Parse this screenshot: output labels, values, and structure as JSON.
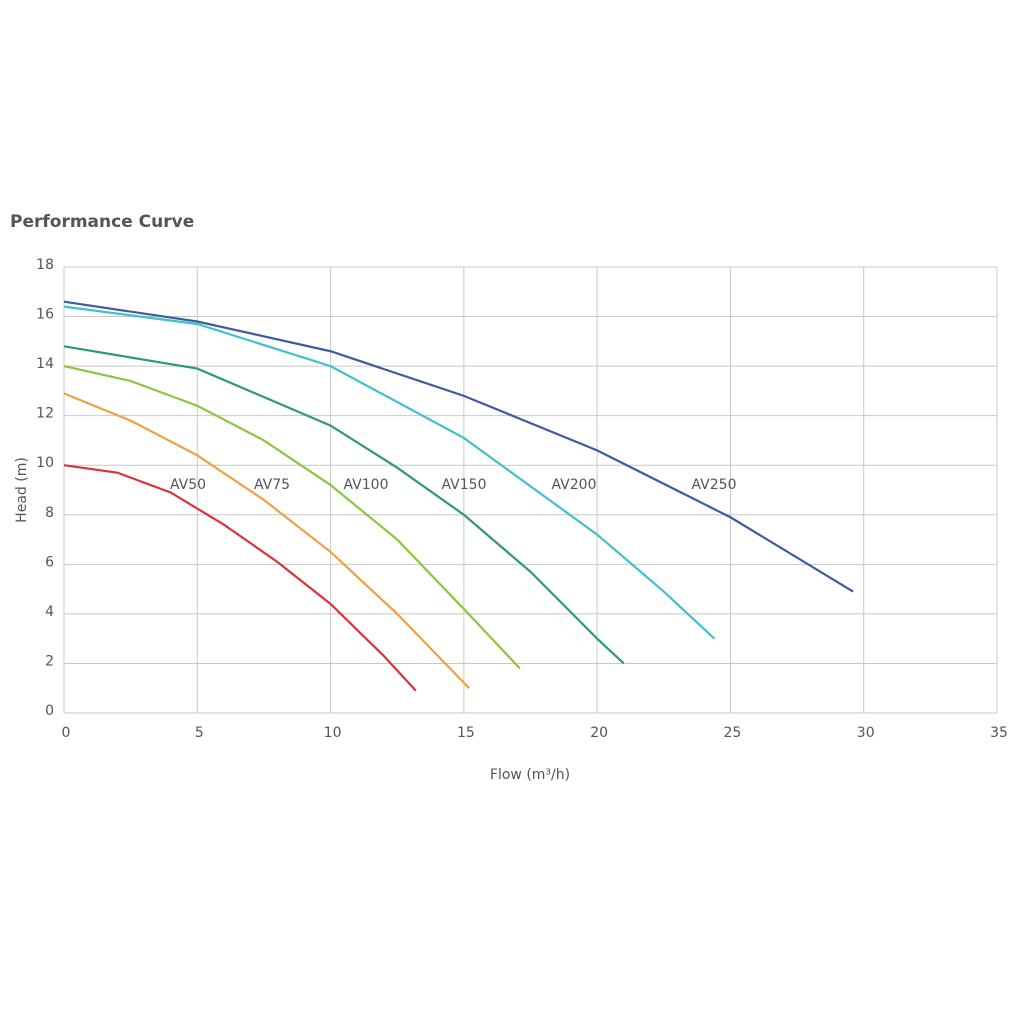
{
  "chart_data": {
    "type": "line",
    "title": "Performance Curve",
    "x_label": "Flow (m³/h)",
    "y_label": "Head (m)",
    "xlim": [
      0,
      35
    ],
    "ylim": [
      0,
      18
    ],
    "xticks": [
      0,
      5,
      10,
      15,
      20,
      25,
      30,
      35
    ],
    "yticks": [
      0,
      2,
      4,
      6,
      8,
      10,
      12,
      14,
      16,
      18
    ],
    "grid": true,
    "series": [
      {
        "name": "AV50",
        "color": "#d8333b",
        "x": [
          0,
          2,
          4,
          6,
          8,
          10,
          12,
          13.2
        ],
        "values": [
          10,
          9.7,
          8.9,
          7.6,
          6.1,
          4.4,
          2.3,
          0.9
        ]
      },
      {
        "name": "AV75",
        "color": "#f0a044",
        "x": [
          0,
          2.5,
          5,
          7.5,
          10,
          12.5,
          15.2
        ],
        "values": [
          12.9,
          11.8,
          10.4,
          8.6,
          6.5,
          4.0,
          1.0
        ]
      },
      {
        "name": "AV100",
        "color": "#8cc63f",
        "x": [
          0,
          2.5,
          5,
          7.5,
          10,
          12.5,
          15,
          17.1
        ],
        "values": [
          14.0,
          13.4,
          12.4,
          11.0,
          9.2,
          7.0,
          4.2,
          1.8
        ]
      },
      {
        "name": "AV150",
        "color": "#2e9a6e",
        "x": [
          0,
          5,
          10,
          12.5,
          15,
          17.5,
          20,
          21
        ],
        "values": [
          14.8,
          13.9,
          11.6,
          9.9,
          8.0,
          5.7,
          3.0,
          2.0
        ]
      },
      {
        "name": "AV200",
        "color": "#40c0cc",
        "x": [
          0,
          5,
          10,
          15,
          20,
          22.5,
          24.4
        ],
        "values": [
          16.4,
          15.7,
          14.0,
          11.1,
          7.2,
          4.9,
          3.0
        ]
      },
      {
        "name": "AV250",
        "color": "#3f5b9c",
        "x": [
          0,
          5,
          10,
          15,
          20,
          25,
          29.6
        ],
        "values": [
          16.6,
          15.8,
          14.6,
          12.8,
          10.6,
          7.9,
          4.9
        ]
      }
    ]
  }
}
